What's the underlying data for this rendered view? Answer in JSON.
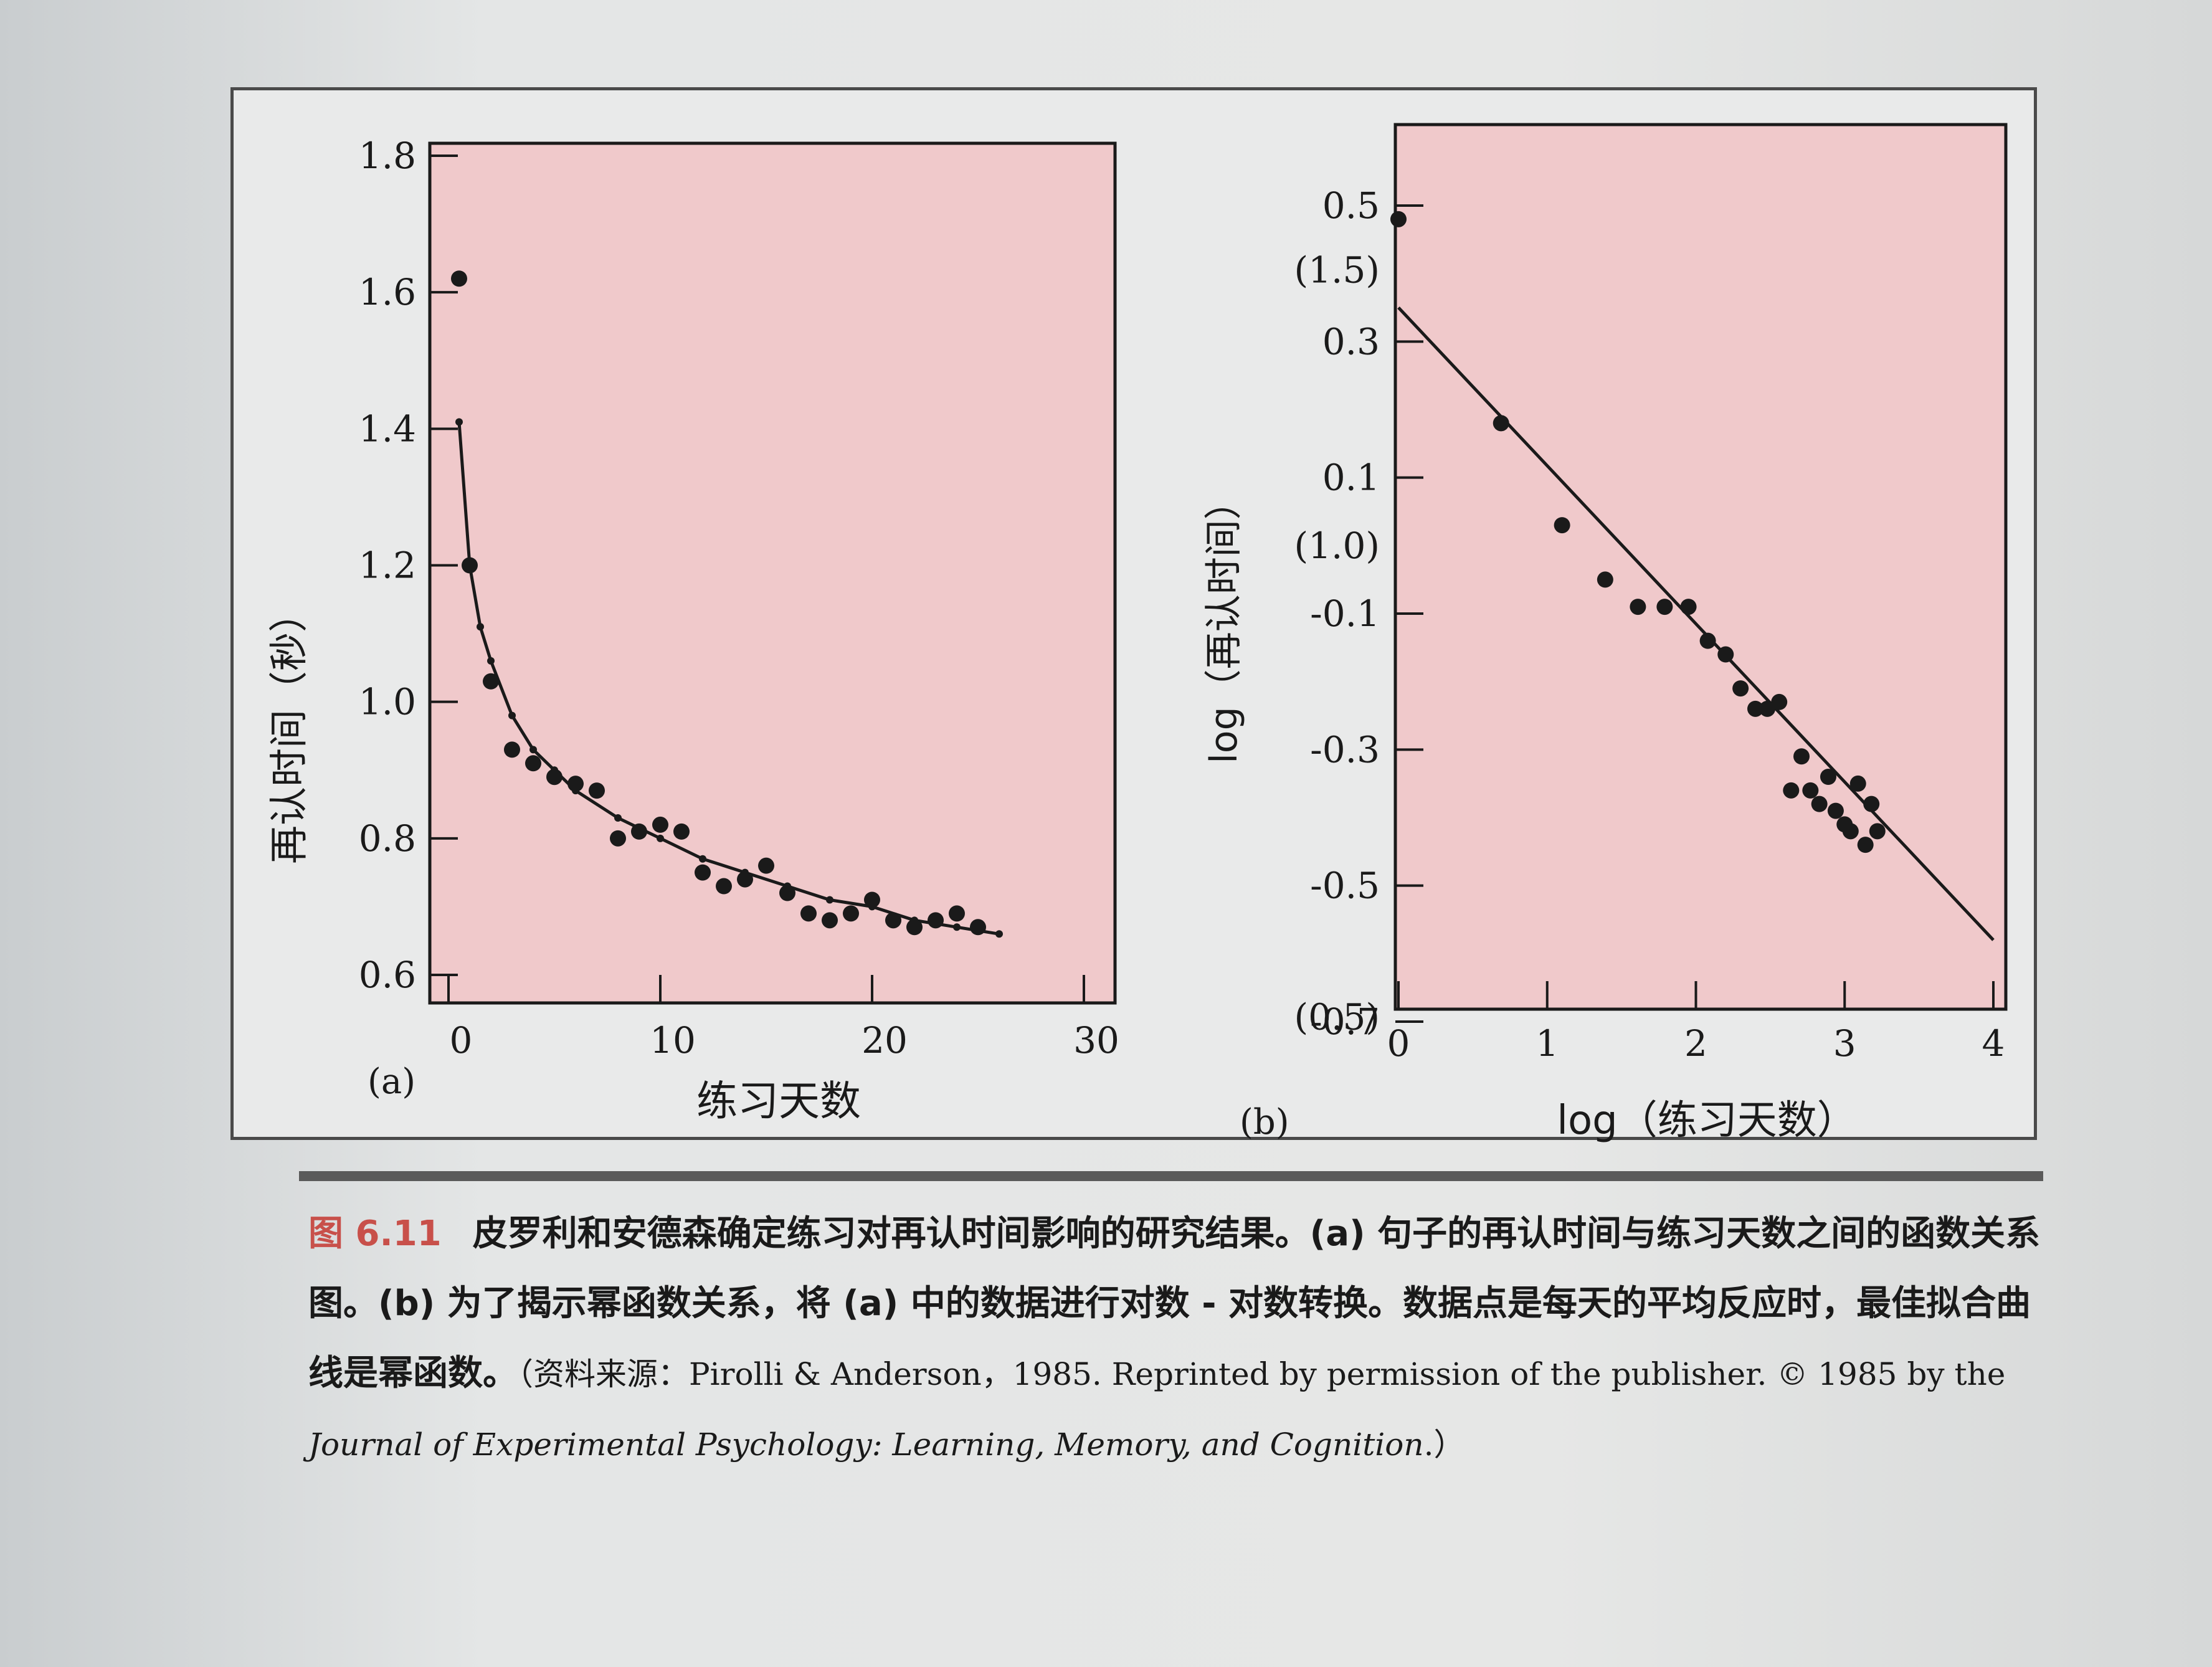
{
  "figure": {
    "panel_a_label": "(a)",
    "panel_b_label": "(b)",
    "caption": {
      "label": "图 6.11",
      "text": "皮罗利和安德森确定练习对再认时间影响的研究结果。(a) 句子的再认时间与练习天数之间的函数关系图。(b) 为了揭示幂函数关系，将 (a) 中的数据进行对数 - 对数转换。数据点是每天的平均反应时，最佳拟合曲线是幂函数。",
      "source_prefix": "（资料来源：Pirolli & Anderson，1985. Reprinted by permission of the publisher. © 1985 by the ",
      "source_journal": "Journal of Experimental Psychology: Learning, Memory, and Cognition",
      "source_suffix": ".）"
    }
  },
  "colors": {
    "plot_bg": "#f0c9cb",
    "ink": "#1a1a1a",
    "caption_label": "#c8504a"
  },
  "chart_data": [
    {
      "type": "scatter",
      "panel": "(a)",
      "title": "",
      "xlabel": "练习天数",
      "ylabel": "再认时间（秒）",
      "xlim": [
        0,
        30
      ],
      "ylim": [
        0.6,
        1.8
      ],
      "xticks": [
        "0",
        "10",
        "20",
        "30"
      ],
      "yticks": [
        "0.6",
        "0.8",
        "1.0",
        "1.2",
        "1.4",
        "1.6",
        "1.8"
      ],
      "grid": false,
      "points": {
        "x": [
          0.5,
          1,
          2,
          3,
          4,
          5,
          6,
          7,
          8,
          9,
          10,
          11,
          12,
          13,
          14,
          15,
          16,
          17,
          18,
          19,
          20,
          21,
          22,
          23,
          24,
          25
        ],
        "y": [
          1.62,
          1.2,
          1.03,
          0.93,
          0.91,
          0.89,
          0.88,
          0.87,
          0.8,
          0.81,
          0.82,
          0.81,
          0.75,
          0.73,
          0.74,
          0.76,
          0.72,
          0.69,
          0.68,
          0.69,
          0.71,
          0.68,
          0.67,
          0.68,
          0.69,
          0.67
        ]
      },
      "fit_curve": {
        "x": [
          0.5,
          1,
          1.5,
          2,
          3,
          4,
          5,
          6,
          8,
          10,
          12,
          14,
          16,
          18,
          20,
          22,
          24,
          26
        ],
        "y": [
          1.41,
          1.2,
          1.11,
          1.06,
          0.98,
          0.93,
          0.9,
          0.87,
          0.83,
          0.8,
          0.77,
          0.75,
          0.73,
          0.71,
          0.7,
          0.68,
          0.67,
          0.66
        ]
      }
    },
    {
      "type": "scatter",
      "panel": "(b)",
      "title": "",
      "xlabel": "log（练习天数）",
      "ylabel": "log（再认时间）",
      "xlim": [
        0,
        4
      ],
      "ylim": [
        -0.7,
        0.5
      ],
      "xticks": [
        "0",
        "1",
        "2",
        "3",
        "4"
      ],
      "yticks": [
        "0.5",
        "0.3",
        "0.1",
        "-0.1",
        "-0.3",
        "-0.5",
        "-0.7"
      ],
      "secondary_yticks": [
        {
          "value": 0.405,
          "label": "(1.5)"
        },
        {
          "value": 0.0,
          "label": "(1.0)"
        },
        {
          "value": -0.693,
          "label": "(0.5)"
        }
      ],
      "grid": false,
      "points": {
        "x": [
          0,
          0.69,
          1.1,
          1.39,
          1.61,
          1.79,
          1.95,
          2.08,
          2.2,
          2.3,
          2.4,
          2.48,
          2.56,
          2.64,
          2.71,
          2.77,
          2.83,
          2.89,
          2.94,
          3.0,
          3.04,
          3.09,
          3.14,
          3.18,
          3.22
        ],
        "y": [
          0.48,
          0.18,
          0.03,
          -0.05,
          -0.09,
          -0.09,
          -0.09,
          -0.14,
          -0.16,
          -0.21,
          -0.24,
          -0.24,
          -0.23,
          -0.36,
          -0.31,
          -0.36,
          -0.38,
          -0.34,
          -0.39,
          -0.41,
          -0.42,
          -0.35,
          -0.44,
          -0.38,
          -0.42
        ]
      },
      "fit_line": {
        "x": [
          0,
          4
        ],
        "y": [
          0.35,
          -0.58
        ]
      }
    }
  ]
}
